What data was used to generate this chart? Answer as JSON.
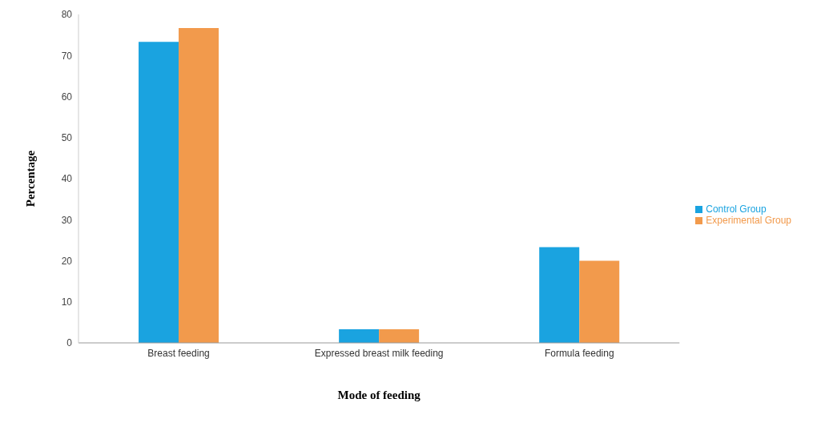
{
  "chart_data": {
    "type": "bar",
    "xlabel": "Mode of feeding",
    "ylabel": "Percentage",
    "categories": [
      "Breast feeding",
      "Expressed breast milk feeding",
      "Formula feeding"
    ],
    "series": [
      {
        "name": "Control Group",
        "color": "#1aa3e0",
        "values": [
          73.3,
          3.3,
          23.3
        ]
      },
      {
        "name": "Experimental Group",
        "color": "#f29a4c",
        "values": [
          76.7,
          3.3,
          20
        ]
      }
    ],
    "ylim": [
      0,
      80
    ],
    "yticks": [
      0,
      10,
      20,
      30,
      40,
      50,
      60,
      70,
      80
    ],
    "grid": false,
    "legend": "right"
  }
}
